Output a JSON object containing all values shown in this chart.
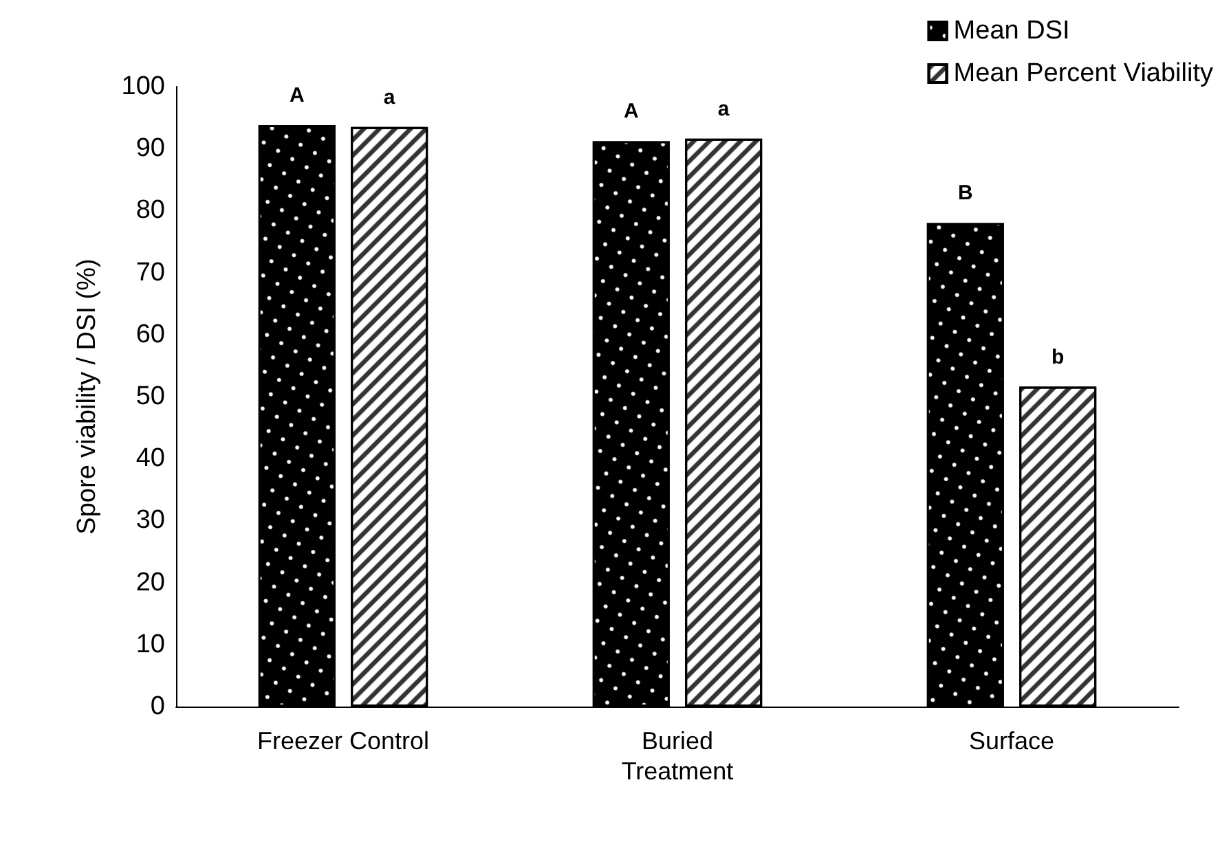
{
  "chart_data": {
    "type": "bar",
    "categories": [
      "Freezer Control",
      "Buried\nTreatment",
      "Surface"
    ],
    "ylabel": "Spore viability / DSI (%)",
    "ylim": [
      0,
      100
    ],
    "yticks": [
      0,
      10,
      20,
      30,
      40,
      50,
      60,
      70,
      80,
      90,
      100
    ],
    "grid": false,
    "legend": "top right",
    "series": [
      {
        "name": "Mean DSI",
        "color": "#000000",
        "values": [
          93.8,
          91.2,
          78.0
        ],
        "value_labels": [
          "A",
          "A",
          "B"
        ]
      },
      {
        "name": "Mean Percent Viability",
        "color": "#ffffff",
        "values": [
          93.5,
          91.6,
          51.6
        ],
        "value_labels": [
          "a",
          "a",
          "b"
        ]
      }
    ]
  }
}
